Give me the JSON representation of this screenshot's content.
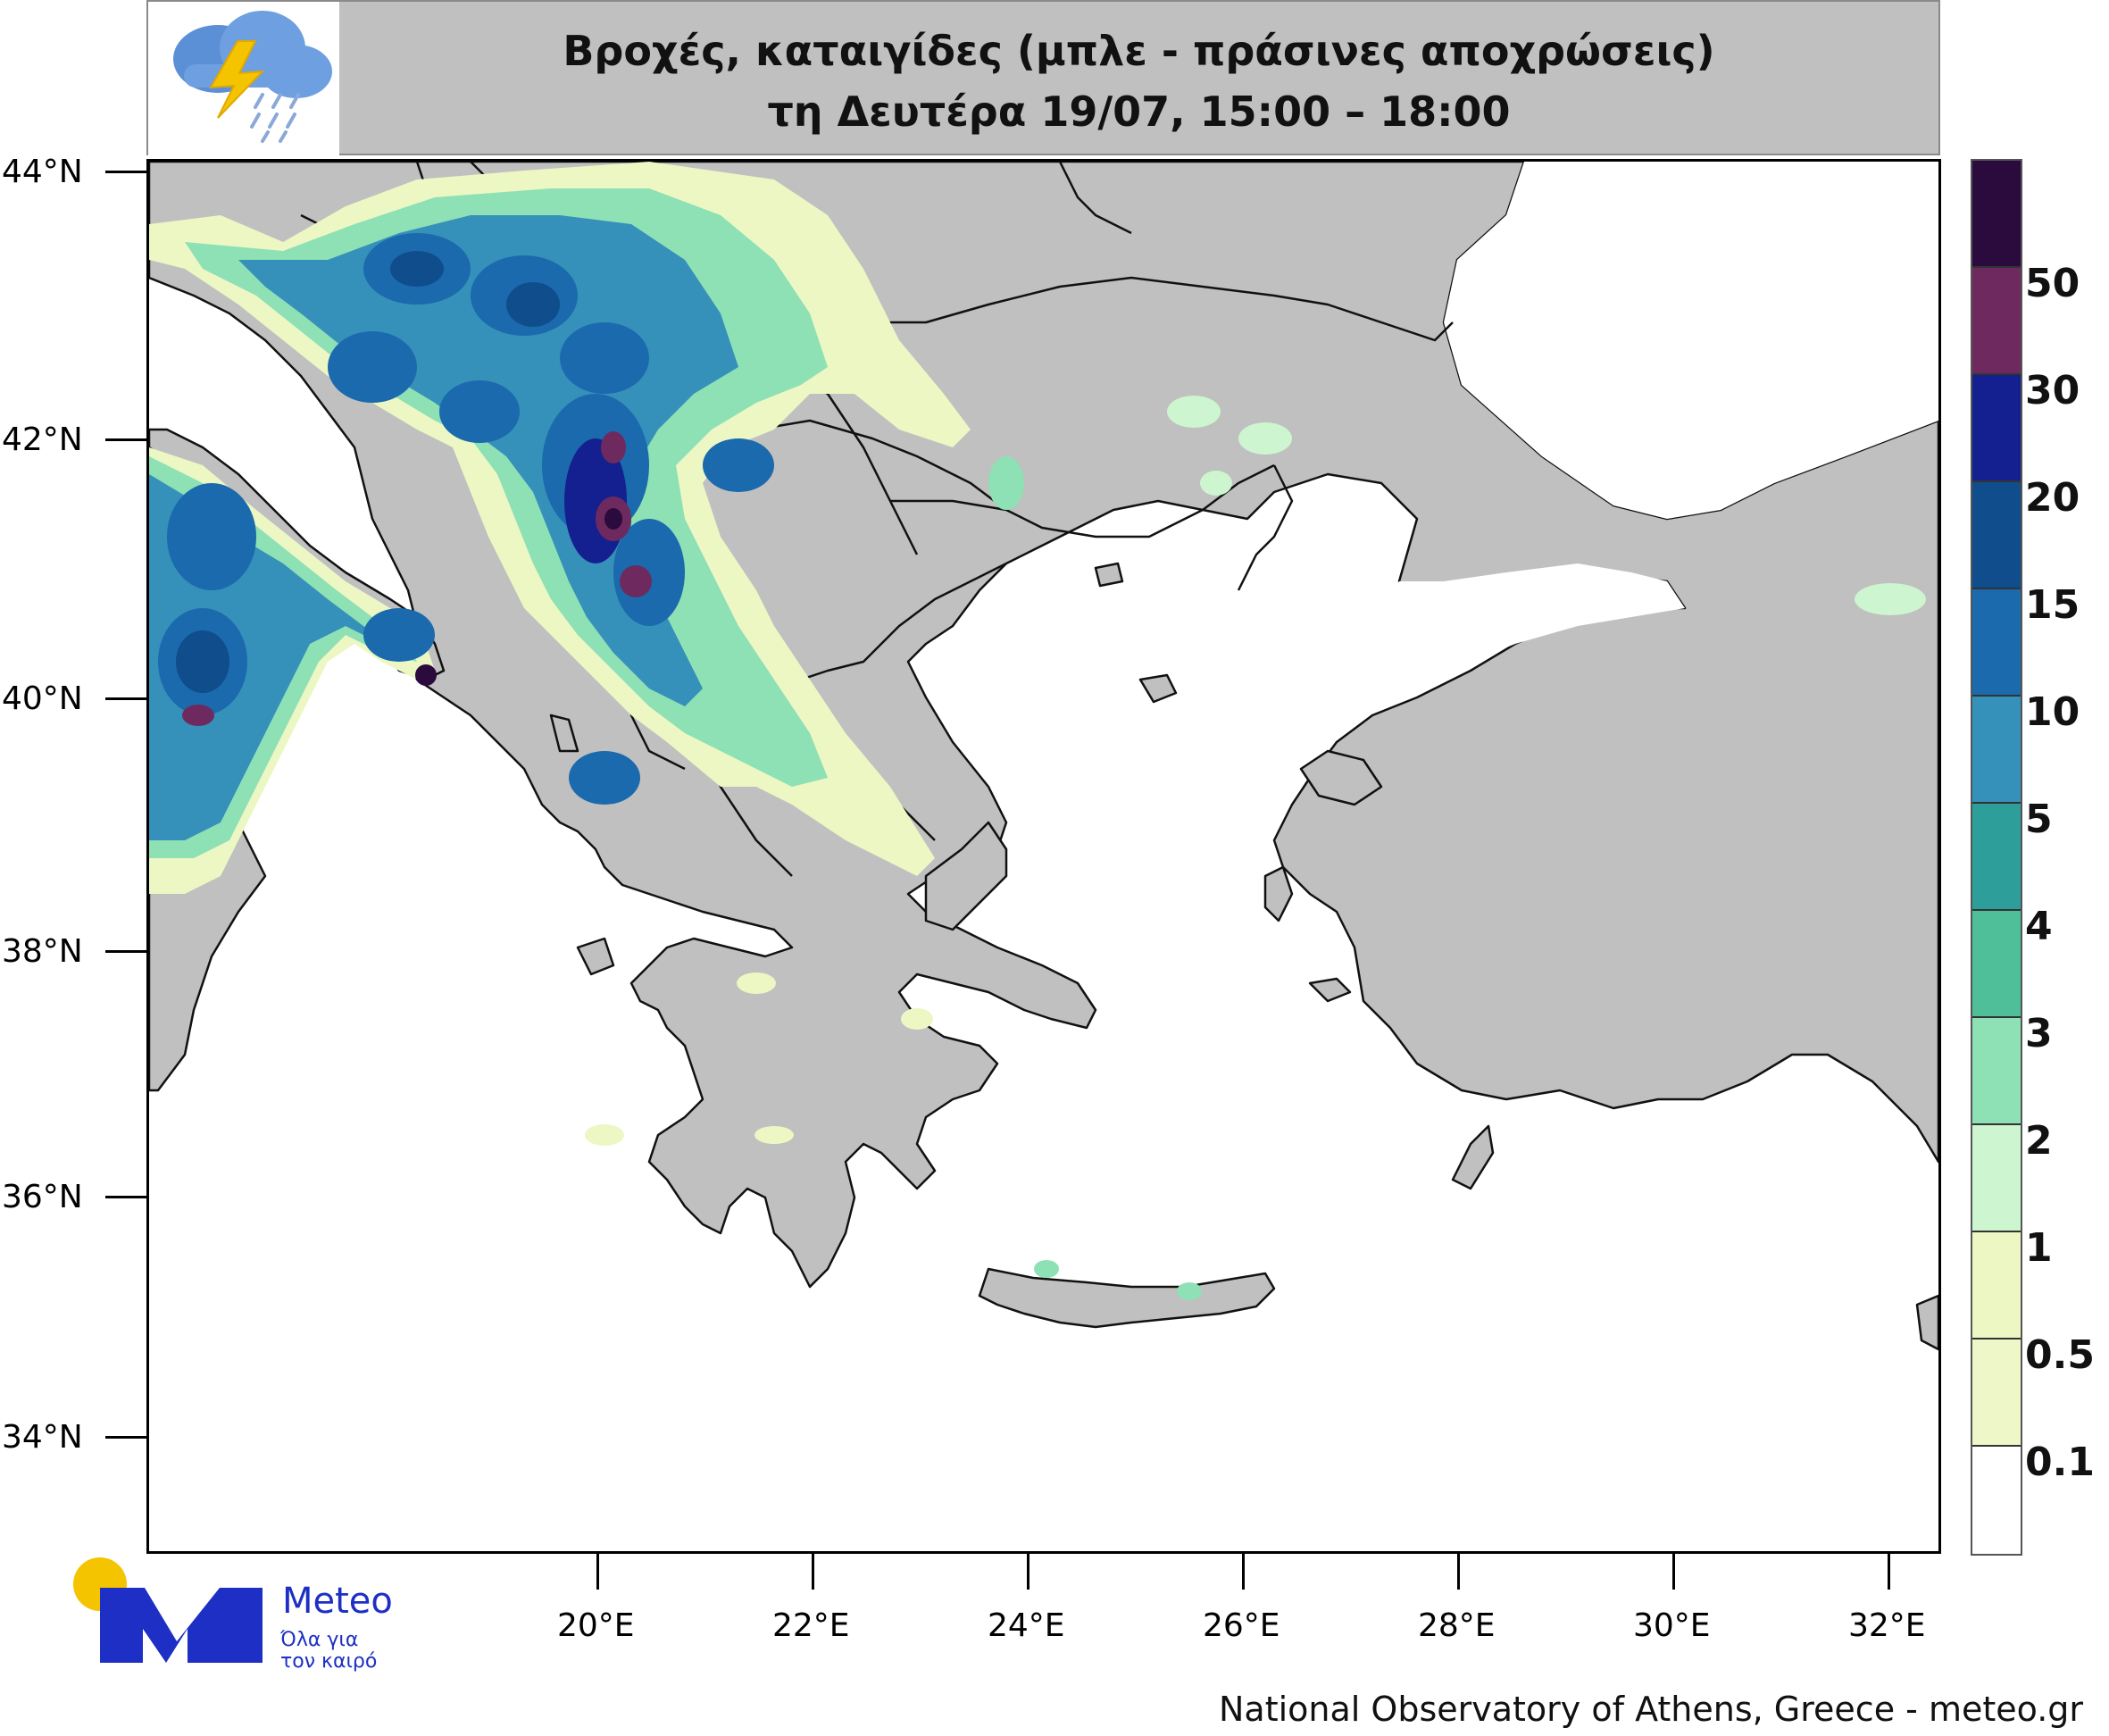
{
  "header": {
    "title_line1": "Βροχές, καταιγίδες (μπλε - πράσινες αποχρώσεις)",
    "title_line2": "τη Δευτέρα 19/07, 15:00 – 18:00",
    "icon": "storm-cloud-rain-icon"
  },
  "axes": {
    "lat_labels": [
      "44°N",
      "42°N",
      "40°N",
      "38°N",
      "36°N",
      "34°N"
    ],
    "lon_labels": [
      "20°E",
      "22°E",
      "24°E",
      "26°E",
      "28°E",
      "30°E",
      "32°E"
    ]
  },
  "legend": {
    "labels": [
      "50",
      "30",
      "20",
      "15",
      "10",
      "5",
      "4",
      "3",
      "2",
      "1",
      "0.5",
      "0.1"
    ],
    "colors": [
      "#2b0a3d",
      "#6e2a5e",
      "#14208f",
      "#0f4d8c",
      "#1a6aad",
      "#3590ba",
      "#2e9e9a",
      "#4fbf9a",
      "#8ee0b5",
      "#cdf5cf",
      "#ecf7c4",
      "#eef7c8",
      "#ffffff"
    ]
  },
  "map": {
    "land_color": "#c0c0c0",
    "sea_color": "#ffffff",
    "border_color": "#111111"
  },
  "logo": {
    "name": "Meteo",
    "tagline_line1": "Όλα για",
    "tagline_line2": "τον καιρό",
    "brand_color": "#1d2fc4",
    "sun_color": "#f5c400"
  },
  "credit": "National Observatory of Athens, Greece - meteo.gr"
}
